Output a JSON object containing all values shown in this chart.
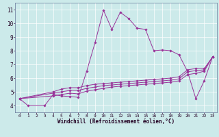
{
  "xlabel": "Windchill (Refroidissement éolien,°C)",
  "background_color": "#cceaea",
  "line_color": "#993399",
  "grid_color": "#ffffff",
  "xlim": [
    -0.5,
    23.5
  ],
  "ylim": [
    3.5,
    11.5
  ],
  "xticks": [
    0,
    1,
    2,
    3,
    4,
    5,
    6,
    7,
    8,
    9,
    10,
    11,
    12,
    13,
    14,
    15,
    16,
    17,
    18,
    19,
    20,
    21,
    22,
    23
  ],
  "yticks": [
    4,
    5,
    6,
    7,
    8,
    9,
    10,
    11
  ],
  "x_all": [
    0,
    1,
    2,
    3,
    4,
    5,
    6,
    7,
    8,
    9,
    10,
    11,
    12,
    13,
    14,
    15,
    16,
    17,
    18,
    19,
    20,
    21,
    22,
    23
  ],
  "series": [
    [
      4.5,
      4.0,
      null,
      4.0,
      4.8,
      4.7,
      4.65,
      4.6,
      6.5,
      8.6,
      10.95,
      9.55,
      10.8,
      10.35,
      9.65,
      9.55,
      8.0,
      8.05,
      8.0,
      7.7,
      6.5,
      4.5,
      5.8,
      7.55
    ],
    [
      4.5,
      null,
      null,
      null,
      5.0,
      5.2,
      5.3,
      5.3,
      5.45,
      5.55,
      5.6,
      5.65,
      5.7,
      5.75,
      5.8,
      5.85,
      5.9,
      5.95,
      6.0,
      6.1,
      6.6,
      6.7,
      6.7,
      7.55
    ],
    [
      4.5,
      null,
      null,
      null,
      4.9,
      5.0,
      5.1,
      5.1,
      5.25,
      5.35,
      5.45,
      5.5,
      5.55,
      5.6,
      5.65,
      5.7,
      5.75,
      5.8,
      5.85,
      5.95,
      6.45,
      6.55,
      6.6,
      7.55
    ],
    [
      4.5,
      null,
      null,
      null,
      4.7,
      4.8,
      4.9,
      4.85,
      5.05,
      5.15,
      5.25,
      5.35,
      5.4,
      5.45,
      5.5,
      5.55,
      5.6,
      5.65,
      5.7,
      5.8,
      6.25,
      6.35,
      6.5,
      7.55
    ]
  ]
}
